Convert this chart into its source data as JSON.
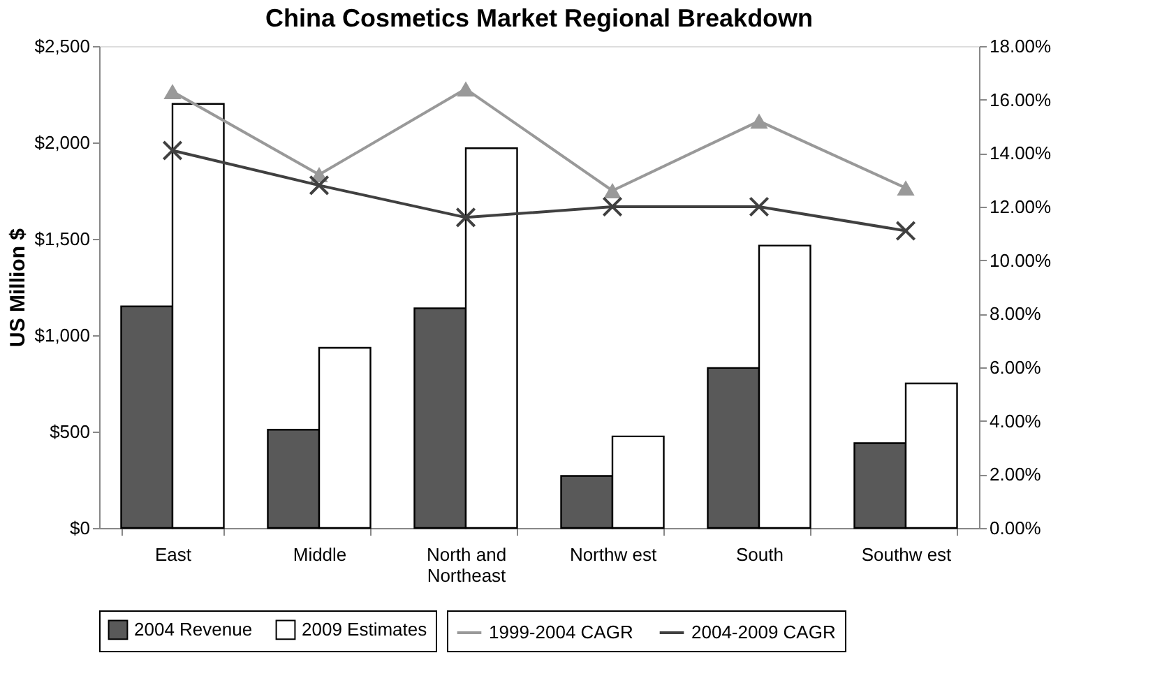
{
  "chart_data": {
    "type": "bar",
    "title": "China Cosmetics Market Regional Breakdown",
    "ylabel": "US Million $",
    "categories": [
      "East",
      "Middle",
      "North and Northeast",
      "Northw est",
      "South",
      "Southw est"
    ],
    "series": [
      {
        "name": "2004 Revenue",
        "color": "#595959",
        "values": [
          1150,
          510,
          1140,
          270,
          830,
          440
        ]
      },
      {
        "name": "2009 Estimates",
        "color": "#ffffff",
        "values": [
          2200,
          935,
          1970,
          475,
          1465,
          750
        ]
      },
      {
        "name": "1999-2004 CAGR",
        "type": "line",
        "axis": "y2",
        "marker": "triangle",
        "color": "#999999",
        "values": [
          16.3,
          13.2,
          16.4,
          12.6,
          15.2,
          12.7
        ]
      },
      {
        "name": "2004-2009 CAGR",
        "type": "line",
        "axis": "y2",
        "marker": "cross",
        "color": "#404040",
        "values": [
          14.1,
          12.8,
          11.6,
          12.0,
          12.0,
          11.1
        ]
      }
    ],
    "ylim": [
      0,
      2500
    ],
    "yticks": [
      {
        "value": 0,
        "label": "$0"
      },
      {
        "value": 500,
        "label": "$500"
      },
      {
        "value": 1000,
        "label": "$1,000"
      },
      {
        "value": 1500,
        "label": "$1,500"
      },
      {
        "value": 2000,
        "label": "$2,000"
      },
      {
        "value": 2500,
        "label": "$2,500"
      }
    ],
    "y2lim": [
      0,
      18
    ],
    "y2ticks": [
      {
        "value": 0,
        "label": "0.00%"
      },
      {
        "value": 2,
        "label": "2.00%"
      },
      {
        "value": 4,
        "label": "4.00%"
      },
      {
        "value": 6,
        "label": "6.00%"
      },
      {
        "value": 8,
        "label": "8.00%"
      },
      {
        "value": 10,
        "label": "10.00%"
      },
      {
        "value": 12,
        "label": "12.00%"
      },
      {
        "value": 14,
        "label": "14.00%"
      },
      {
        "value": 16,
        "label": "16.00%"
      },
      {
        "value": 18,
        "label": "18.00%"
      }
    ],
    "grid": false,
    "legend": "bottom"
  }
}
